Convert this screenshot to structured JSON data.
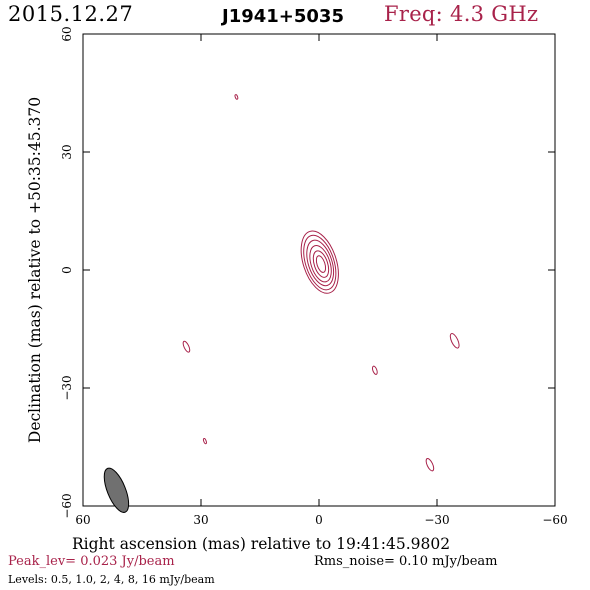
{
  "header": {
    "date": "2015.12.27",
    "source": "J1941+5035",
    "freq_label": "Freq: 4.3 GHz"
  },
  "footer": {
    "peak_label": "Peak_lev=  0.023 Jy/beam",
    "rms_label": "Rms_noise= 0.10 mJy/beam",
    "levels_label": "Levels: 0.5, 1.0,   2,   4,   8,  16 mJy/beam"
  },
  "colors": {
    "contour": "#a8224a",
    "axis": "#000000",
    "beam": "#707070"
  },
  "chart_data": {
    "type": "contour",
    "xlabel": "Right ascension (mas) relative to 19:41:45.9802",
    "ylabel": "Declination (mas) relative to +50:35:45.370",
    "xlim": [
      60,
      -60
    ],
    "ylim": [
      -60,
      60
    ],
    "xticks": [
      60,
      30,
      0,
      -30,
      -60
    ],
    "yticks": [
      -60,
      -30,
      0,
      30,
      60
    ],
    "xtick_labels": [
      "60",
      "30",
      "0",
      "−30",
      "−60"
    ],
    "ytick_labels": [
      "−60",
      "−30",
      "0",
      "30",
      "60"
    ],
    "levels_mjy": [
      0.5,
      1.0,
      2,
      4,
      8,
      16
    ],
    "peak_jy_per_beam": 0.023,
    "rms_mjy_per_beam": 0.1,
    "components": [
      {
        "name": "core",
        "x": -0.5,
        "y": 1.5,
        "contours": [
          {
            "rx": 4.2,
            "ry": 8.2,
            "dx": -0.3,
            "dy": 0.5,
            "angle": -18
          },
          {
            "rx": 3.6,
            "ry": 7.2,
            "dx": -0.3,
            "dy": 0.4,
            "angle": -18
          },
          {
            "rx": 3.0,
            "ry": 6.0,
            "dx": -0.2,
            "dy": 0.3,
            "angle": -18
          },
          {
            "rx": 2.4,
            "ry": 4.8,
            "dx": -0.1,
            "dy": 0.1,
            "angle": -18
          },
          {
            "rx": 1.7,
            "ry": 3.5,
            "dx": 0.0,
            "dy": 0.0,
            "angle": -18
          },
          {
            "rx": 1.0,
            "ry": 2.2,
            "dx": 0.0,
            "dy": 0.0,
            "angle": -18
          }
        ]
      },
      {
        "name": "blob-1",
        "x": 21,
        "y": 44,
        "contours": [
          {
            "rx": 0.3,
            "ry": 0.6,
            "angle": -20
          }
        ]
      },
      {
        "name": "blob-2",
        "x": 33.7,
        "y": -19.5,
        "contours": [
          {
            "rx": 0.6,
            "ry": 1.5,
            "angle": -25
          }
        ]
      },
      {
        "name": "blob-3",
        "x": 29,
        "y": -43.5,
        "contours": [
          {
            "rx": 0.3,
            "ry": 0.7,
            "angle": -20
          }
        ]
      },
      {
        "name": "blob-4",
        "x": -14.2,
        "y": -25.5,
        "contours": [
          {
            "rx": 0.5,
            "ry": 1.1,
            "angle": -20
          }
        ]
      },
      {
        "name": "blob-5",
        "x": -34.5,
        "y": -18,
        "contours": [
          {
            "rx": 0.8,
            "ry": 2.0,
            "angle": -25
          }
        ]
      },
      {
        "name": "blob-6",
        "x": -28.2,
        "y": -49.5,
        "contours": [
          {
            "rx": 0.7,
            "ry": 1.7,
            "angle": -25
          }
        ]
      }
    ],
    "beam": {
      "x": 51.5,
      "y": -56,
      "major": 6.0,
      "minor": 2.3,
      "angle": -22
    }
  }
}
